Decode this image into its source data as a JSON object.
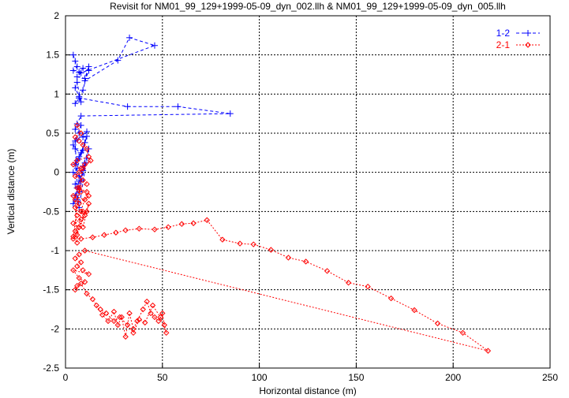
{
  "chart_data": {
    "type": "line",
    "title": "Revisit for NM01_99_129+1999-05-09_dyn_002.llh & NM01_99_129+1999-05-09_dyn_005.llh",
    "xlabel": "Horizontal distance (m)",
    "ylabel": "Vertical distance (m)",
    "xlim": [
      0,
      250
    ],
    "ylim": [
      -2.5,
      2
    ],
    "xticks": [
      0,
      50,
      100,
      150,
      200,
      250
    ],
    "yticks": [
      -2.5,
      -2,
      -1.5,
      -1,
      -0.5,
      0,
      0.5,
      1,
      1.5,
      2
    ],
    "grid": true,
    "legend_position": "top-right",
    "series": [
      {
        "name": "1-2",
        "color": "#0000ff",
        "marker": "plus",
        "x": [
          4,
          5,
          6,
          4,
          7,
          9,
          12,
          10,
          27,
          33,
          46,
          8,
          6,
          10,
          12,
          9,
          7,
          5,
          6,
          8,
          7,
          5,
          7,
          32,
          58,
          85,
          8,
          6,
          5,
          7,
          9,
          11,
          6,
          4,
          5,
          8,
          10,
          7,
          6,
          5,
          9,
          11,
          6,
          4,
          7,
          10,
          8,
          5,
          6,
          9,
          12,
          7,
          5,
          8,
          6,
          4,
          9,
          11,
          7,
          6,
          5,
          8
        ],
        "y": [
          1.5,
          1.42,
          1.35,
          1.3,
          1.28,
          1.33,
          1.3,
          1.17,
          1.43,
          1.72,
          1.62,
          1.27,
          1.22,
          1.2,
          1.35,
          1.05,
          0.97,
          1.08,
          1.15,
          0.9,
          0.95,
          0.88,
          0.95,
          0.84,
          0.84,
          0.75,
          0.72,
          0.62,
          0.55,
          0.5,
          0.45,
          0.52,
          0.42,
          0.35,
          0.3,
          0.25,
          0.38,
          0.2,
          0.15,
          0.1,
          0.28,
          0.46,
          0.05,
          0.0,
          -0.05,
          0.12,
          -0.1,
          -0.15,
          -0.2,
          0.08,
          0.3,
          -0.25,
          -0.3,
          -0.12,
          -0.35,
          -0.4,
          0.02,
          0.18,
          -0.45,
          -0.2,
          0.4,
          0.6
        ]
      },
      {
        "name": "2-1",
        "color": "#ff0000",
        "marker": "diamond",
        "x": [
          6,
          8,
          5,
          7,
          9,
          11,
          12,
          6,
          4,
          8,
          10,
          13,
          7,
          5,
          9,
          11,
          6,
          8,
          4,
          10,
          12,
          7,
          5,
          9,
          6,
          11,
          8,
          4,
          7,
          10,
          5,
          9,
          12,
          6,
          8,
          11,
          7,
          4,
          9,
          5,
          6,
          4,
          8,
          14,
          20,
          26,
          31,
          38,
          46,
          53,
          60,
          66,
          73,
          81,
          90,
          97,
          106,
          115,
          124,
          135,
          146,
          156,
          168,
          180,
          192,
          205,
          218,
          10,
          7,
          5,
          8,
          6,
          9,
          12,
          4,
          7,
          10,
          6,
          5,
          8,
          11,
          14,
          16,
          19,
          22,
          25,
          27,
          29,
          31,
          33,
          35,
          37,
          40,
          42,
          44,
          46,
          48,
          50,
          51,
          52,
          49,
          45,
          41,
          38,
          35,
          32,
          28,
          25,
          21,
          18
        ],
        "y": [
          0.6,
          0.5,
          0.45,
          0.4,
          0.35,
          0.3,
          0.2,
          0.15,
          0.1,
          0.05,
          0.1,
          0.15,
          0.0,
          -0.05,
          -0.1,
          -0.15,
          -0.2,
          -0.25,
          -0.3,
          -0.35,
          -0.3,
          -0.4,
          -0.45,
          -0.5,
          -0.55,
          -0.5,
          -0.6,
          -0.65,
          -0.7,
          -0.55,
          -0.75,
          -0.7,
          -0.4,
          -0.8,
          -0.5,
          -0.25,
          -0.2,
          -0.85,
          0.05,
          -0.35,
          -0.9,
          -0.82,
          -0.85,
          -0.83,
          -0.8,
          -0.77,
          -0.74,
          -0.72,
          -0.73,
          -0.7,
          -0.66,
          -0.65,
          -0.61,
          -0.86,
          -0.91,
          -0.92,
          -0.99,
          -1.09,
          -1.14,
          -1.26,
          -1.41,
          -1.46,
          -1.61,
          -1.76,
          -1.93,
          -2.05,
          -2.28,
          -1.0,
          -1.05,
          -1.1,
          -1.15,
          -1.2,
          -1.25,
          -1.3,
          -1.25,
          -1.35,
          -1.4,
          -1.45,
          -1.5,
          -1.42,
          -1.55,
          -1.62,
          -1.7,
          -1.82,
          -1.9,
          -1.78,
          -1.95,
          -1.85,
          -2.1,
          -1.8,
          -2.0,
          -1.9,
          -1.75,
          -1.65,
          -1.8,
          -1.85,
          -1.9,
          -1.8,
          -1.95,
          -2.05,
          -1.85,
          -1.7,
          -1.92,
          -1.88,
          -2.05,
          -1.95,
          -1.85,
          -1.9,
          -1.8,
          -1.75
        ]
      }
    ]
  }
}
